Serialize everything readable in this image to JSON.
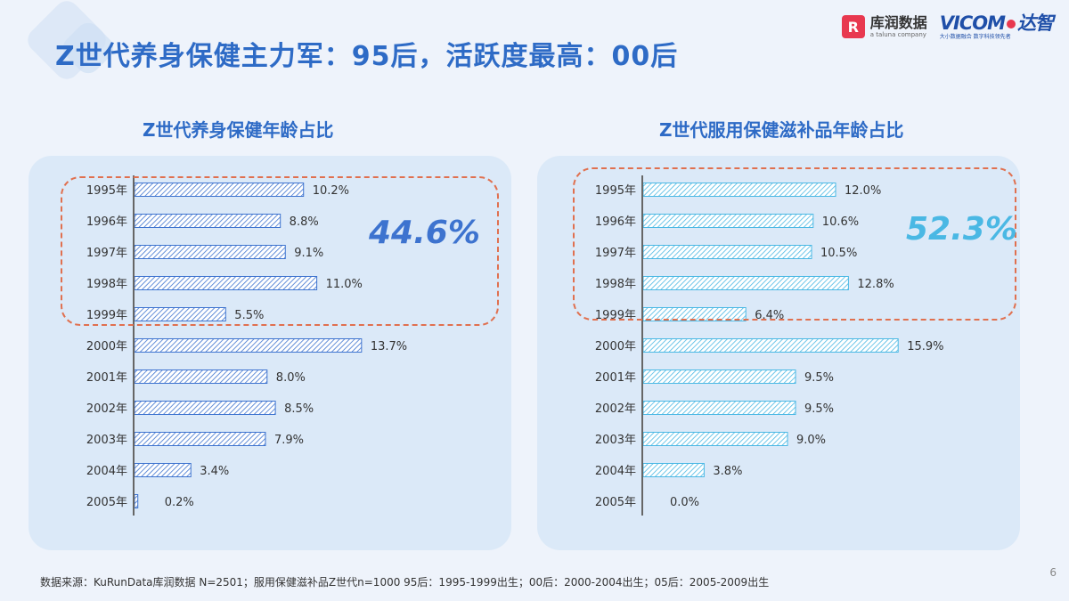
{
  "header": {
    "title": "Z世代养身保健主力军：95后，活跃度最高：00后",
    "logo_kr_mark": "R",
    "logo_kr_name": "库润数据",
    "logo_kr_sub": "a taluna company",
    "logo_vt_name": "VICOM",
    "logo_vt_cn": "达智",
    "logo_vt_sub": "大小数据融合 数字科技领先者"
  },
  "colors": {
    "title": "#2e6bc6",
    "left_bar": "#3d73cf",
    "right_bar": "#4ab8e4",
    "highlight_border": "#e0704f"
  },
  "chart_data": [
    {
      "type": "bar",
      "orientation": "horizontal",
      "title": "Z世代养身保健年龄占比",
      "categories": [
        "1995年",
        "1996年",
        "1997年",
        "1998年",
        "1999年",
        "2000年",
        "2001年",
        "2002年",
        "2003年",
        "2004年",
        "2005年"
      ],
      "values": [
        10.2,
        8.8,
        9.1,
        11.0,
        5.5,
        13.7,
        8.0,
        8.5,
        7.9,
        3.4,
        0.2
      ],
      "value_labels": [
        "10.2%",
        "8.8%",
        "9.1%",
        "11.0%",
        "5.5%",
        "13.7%",
        "8.0%",
        "8.5%",
        "7.9%",
        "3.4%",
        "0.2%"
      ],
      "unit": "%",
      "highlight_label": "44.6%",
      "highlight_categories": [
        "1995年",
        "1996年",
        "1997年",
        "1998年",
        "1999年"
      ],
      "bar_fill": "hatched",
      "grid": false
    },
    {
      "type": "bar",
      "orientation": "horizontal",
      "title": "Z世代服用保健滋补品年龄占比",
      "categories": [
        "1995年",
        "1996年",
        "1997年",
        "1998年",
        "1999年",
        "2000年",
        "2001年",
        "2002年",
        "2003年",
        "2004年",
        "2005年"
      ],
      "values": [
        12.0,
        10.6,
        10.5,
        12.8,
        6.4,
        15.9,
        9.5,
        9.5,
        9.0,
        3.8,
        0.0
      ],
      "value_labels": [
        "12.0%",
        "10.6%",
        "10.5%",
        "12.8%",
        "6.4%",
        "15.9%",
        "9.5%",
        "9.5%",
        "9.0%",
        "3.8%",
        "0.0%"
      ],
      "unit": "%",
      "highlight_label": "52.3%",
      "highlight_categories": [
        "1995年",
        "1996年",
        "1997年",
        "1998年",
        "1999年"
      ],
      "bar_fill": "hatched",
      "grid": false
    }
  ],
  "footer": {
    "source": "数据来源：KuRunData库润数据 N=2501；服用保健滋补品Z世代n=1000  95后：1995-1999出生；00后：2000-2004出生；05后：2005-2009出生",
    "page_number": "6"
  }
}
